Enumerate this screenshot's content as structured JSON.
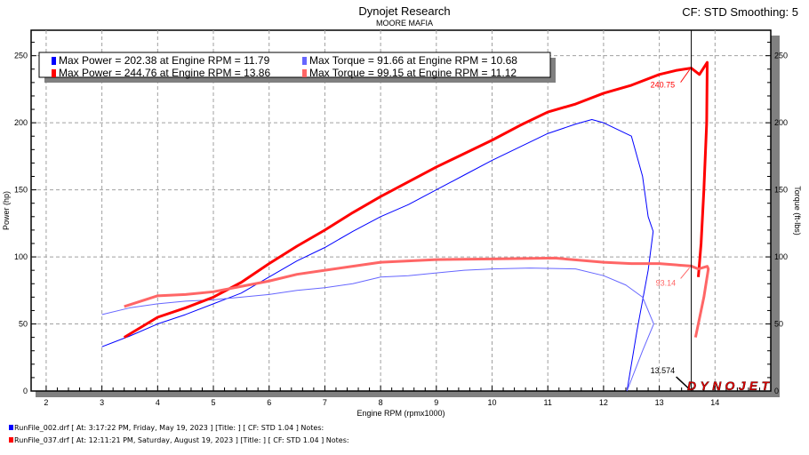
{
  "header": {
    "title": "Dynojet Research",
    "subtitle": "MOORE MAFIA",
    "settings": "CF: STD Smoothing: 5"
  },
  "legend": [
    {
      "power": "Max Power = 202.38 at Engine RPM = 11.79",
      "torque": "Max Torque = 91.66 at Engine RPM = 10.68",
      "power_color": "#0000ff",
      "torque_color": "#6666ff"
    },
    {
      "power": "Max Power = 244.76 at Engine RPM = 13.86",
      "torque": "Max Torque = 99.15 at Engine RPM = 11.12",
      "power_color": "#ff0000",
      "torque_color": "#ff6666"
    }
  ],
  "footer": [
    {
      "text": "RunFile_002.drf [ At: 3:17:22 PM, Friday, May 19, 2023 ] [Title: ]  [ CF: STD 1.04 ] Notes:",
      "color": "#0000ff"
    },
    {
      "text": "RunFile_037.drf [ At: 12:11:21 PM, Saturday, August 19, 2023 ] [Title: ]  [ CF: STD 1.04 ] Notes:",
      "color": "#ff0000"
    }
  ],
  "logo": "DYNOJET",
  "chart_data": {
    "type": "line",
    "xlabel": "Engine RPM (rpmx1000)",
    "ylabel": "Power (hp)",
    "y2label": "Torque (ft-lbs)",
    "xlim": [
      1.73,
      15
    ],
    "ylim": [
      0,
      269
    ],
    "xticks": [
      2,
      3,
      4,
      5,
      6,
      7,
      8,
      9,
      10,
      11,
      12,
      13,
      14
    ],
    "yticks": [
      0,
      50,
      100,
      150,
      200,
      250
    ],
    "grid": true,
    "cursor": {
      "x": 13.574,
      "label": "13.574",
      "power_label": "240.75",
      "power_value": 240.75,
      "torque_label": "93.14",
      "torque_value": 93.14
    },
    "series": [
      {
        "name": "RunFile_002 Power",
        "color": "#0000ff",
        "width": 1,
        "points": [
          [
            3.0,
            33
          ],
          [
            3.5,
            41
          ],
          [
            4,
            50
          ],
          [
            4.5,
            57
          ],
          [
            5,
            65
          ],
          [
            5.5,
            73
          ],
          [
            6,
            85
          ],
          [
            6.5,
            97
          ],
          [
            7,
            107
          ],
          [
            7.5,
            119
          ],
          [
            8,
            130
          ],
          [
            8.5,
            139
          ],
          [
            9,
            150
          ],
          [
            9.5,
            161
          ],
          [
            10,
            172
          ],
          [
            10.5,
            182
          ],
          [
            11,
            192
          ],
          [
            11.5,
            199
          ],
          [
            11.79,
            202.4
          ],
          [
            12.0,
            200
          ],
          [
            12.2,
            196
          ],
          [
            12.5,
            190
          ],
          [
            12.7,
            160
          ],
          [
            12.8,
            130
          ],
          [
            12.89,
            119
          ],
          [
            12.8,
            90
          ],
          [
            12.6,
            45
          ],
          [
            12.42,
            0
          ]
        ]
      },
      {
        "name": "RunFile_002 Torque",
        "color": "#6666ff",
        "width": 1,
        "points": [
          [
            3.0,
            57
          ],
          [
            3.5,
            62
          ],
          [
            4,
            65
          ],
          [
            4.5,
            67
          ],
          [
            5,
            68
          ],
          [
            5.5,
            70
          ],
          [
            6,
            72
          ],
          [
            6.5,
            75
          ],
          [
            7,
            77
          ],
          [
            7.5,
            80
          ],
          [
            8,
            85
          ],
          [
            8.5,
            86
          ],
          [
            9,
            88
          ],
          [
            9.5,
            90
          ],
          [
            10,
            91
          ],
          [
            10.68,
            91.7
          ],
          [
            11.5,
            91
          ],
          [
            12,
            86
          ],
          [
            12.4,
            79
          ],
          [
            12.7,
            70
          ],
          [
            12.9,
            50
          ],
          [
            12.7,
            30
          ],
          [
            12.42,
            0
          ]
        ]
      },
      {
        "name": "RunFile_037 Power",
        "color": "#ff0000",
        "width": 3,
        "points": [
          [
            3.4,
            40
          ],
          [
            4,
            55
          ],
          [
            4.5,
            62
          ],
          [
            5,
            70
          ],
          [
            5.5,
            81
          ],
          [
            6,
            95
          ],
          [
            6.5,
            108
          ],
          [
            7,
            120
          ],
          [
            7.5,
            133
          ],
          [
            8,
            145
          ],
          [
            8.5,
            156
          ],
          [
            9,
            167
          ],
          [
            9.5,
            177
          ],
          [
            10,
            187
          ],
          [
            10.5,
            198
          ],
          [
            11,
            208
          ],
          [
            11.5,
            214
          ],
          [
            12,
            222
          ],
          [
            12.5,
            228
          ],
          [
            13,
            236
          ],
          [
            13.3,
            239
          ],
          [
            13.574,
            240.75
          ],
          [
            13.72,
            236
          ],
          [
            13.86,
            245
          ],
          [
            13.85,
            200
          ],
          [
            13.8,
            150
          ],
          [
            13.75,
            110
          ],
          [
            13.7,
            85
          ]
        ]
      },
      {
        "name": "RunFile_037 Torque",
        "color": "#ff6666",
        "width": 3,
        "points": [
          [
            3.4,
            63
          ],
          [
            4,
            71
          ],
          [
            4.5,
            72
          ],
          [
            5,
            74
          ],
          [
            5.5,
            78
          ],
          [
            6,
            82
          ],
          [
            6.5,
            87
          ],
          [
            7,
            90
          ],
          [
            7.5,
            93
          ],
          [
            8,
            96
          ],
          [
            8.5,
            97
          ],
          [
            9,
            98
          ],
          [
            10,
            98.5
          ],
          [
            11.12,
            99.15
          ],
          [
            12,
            96
          ],
          [
            12.5,
            95
          ],
          [
            13,
            95
          ],
          [
            13.574,
            93.14
          ],
          [
            13.7,
            91
          ],
          [
            13.86,
            93
          ],
          [
            13.88,
            91
          ],
          [
            13.8,
            70
          ],
          [
            13.65,
            40
          ]
        ]
      }
    ]
  }
}
